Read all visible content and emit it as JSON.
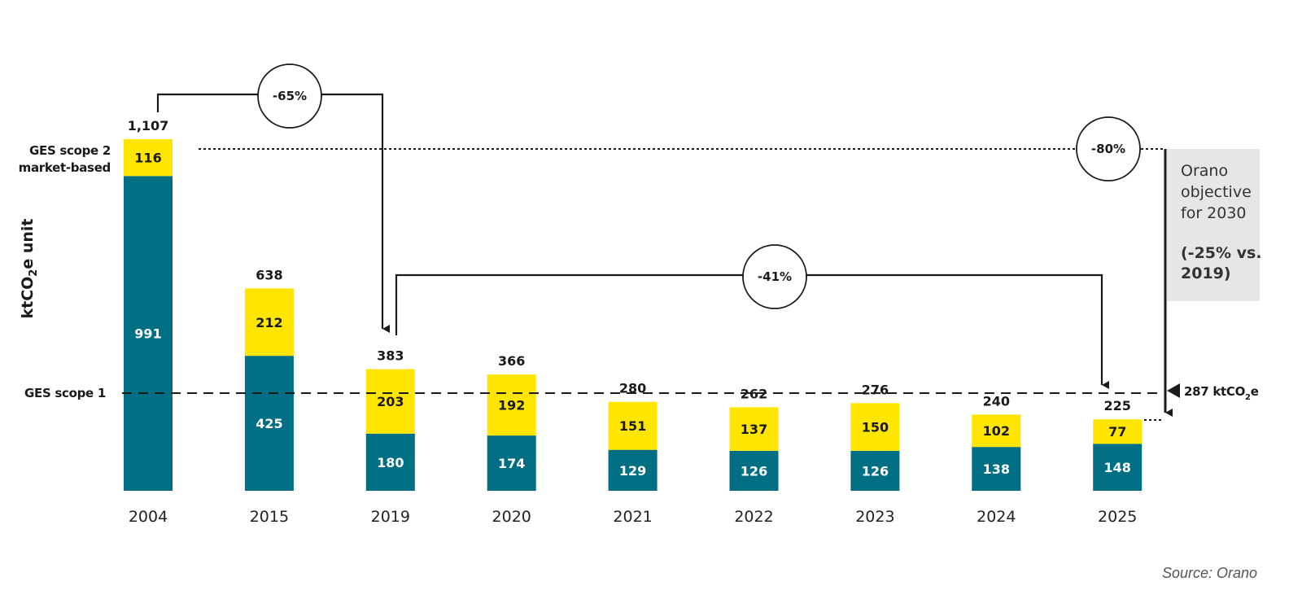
{
  "chart_data": {
    "type": "bar",
    "stacked": true,
    "title": "",
    "ylabel": "ktCO2e unit",
    "ylabel_parts": {
      "pre": "ktCO",
      "sub": "2",
      "post": "e unit"
    },
    "xlabel": "",
    "ylim": [
      0,
      1107
    ],
    "categories": [
      "2004",
      "2015",
      "2019",
      "2020",
      "2021",
      "2022",
      "2023",
      "2024",
      "2025"
    ],
    "series": [
      {
        "name": "GES scope 1",
        "color": "#006F84",
        "values": [
          991,
          425,
          180,
          174,
          129,
          126,
          126,
          138,
          148
        ]
      },
      {
        "name": "GES scope 2 market-based",
        "color": "#FFE500",
        "values": [
          116,
          212,
          203,
          192,
          151,
          137,
          150,
          102,
          77
        ]
      }
    ],
    "totals": [
      "1,107",
      "638",
      "383",
      "366",
      "280",
      "262",
      "276",
      "240",
      "225"
    ],
    "series_labels": {
      "scope1": "GES scope 1",
      "scope2_line1": "GES scope 2",
      "scope2_line2": "market-based"
    },
    "annotations": {
      "reduction_2004_2019": "-65%",
      "reduction_2019_2025": "-41%",
      "reduction_2004_target": "-80%",
      "target_value": 287,
      "target_label": {
        "pre": "287 ktCO",
        "sub": "2",
        "post": "e"
      },
      "objective_box": [
        "Orano",
        "objective",
        "for 2030"
      ],
      "objective_box_bold": [
        "(-25% vs.",
        "2019)"
      ]
    },
    "grid": false,
    "legend": "left"
  },
  "source": "Source: Orano",
  "colors": {
    "scope1": "#006F84",
    "scope2": "#FFE500",
    "objective_bg": "#E6E6E6",
    "line": "#1a1a1a"
  }
}
